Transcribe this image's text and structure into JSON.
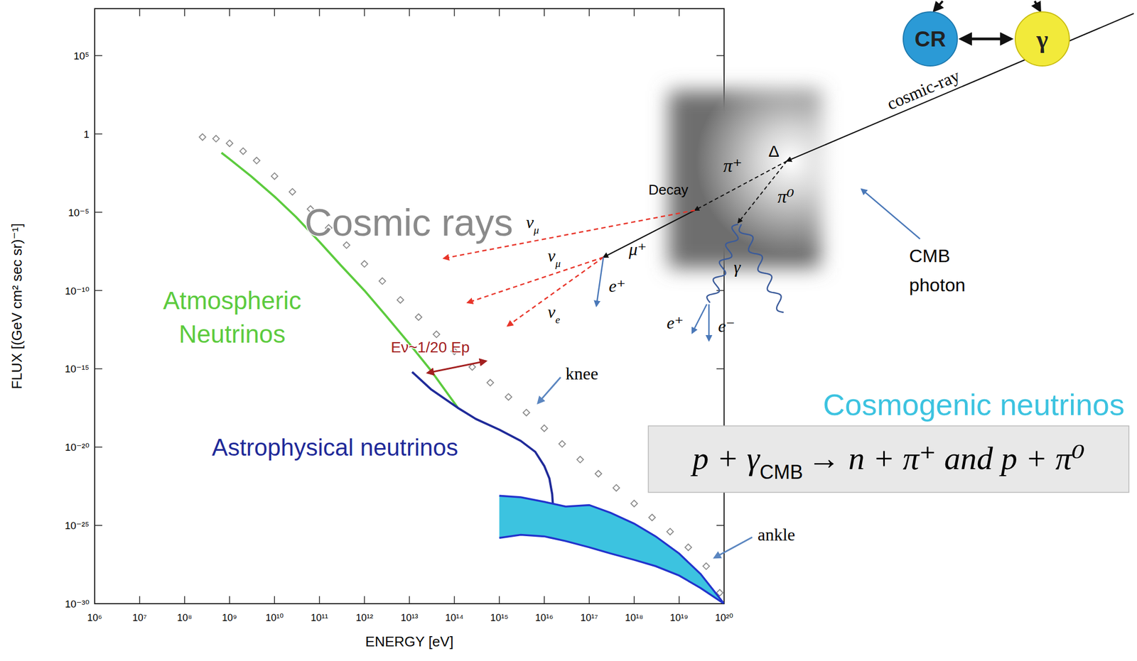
{
  "chart_data": {
    "type": "line",
    "x_label": "ENERGY [eV]",
    "y_label": "FLUX [(GeV cm² sec sr)⁻¹]",
    "log": true,
    "grid": false,
    "xlim": [
      1000000.0,
      1e+20
    ],
    "ylim": [
      1e-30,
      100000000.0
    ],
    "xticks": [
      {
        "value": 1000000.0,
        "label": "10⁶"
      },
      {
        "value": 10000000.0,
        "label": "10⁷"
      },
      {
        "value": 100000000.0,
        "label": "10⁸"
      },
      {
        "value": 1000000000.0,
        "label": "10⁹"
      },
      {
        "value": 10000000000.0,
        "label": "10¹⁰"
      },
      {
        "value": 100000000000.0,
        "label": "10¹¹"
      },
      {
        "value": 1000000000000.0,
        "label": "10¹²"
      },
      {
        "value": 10000000000000.0,
        "label": "10¹³"
      },
      {
        "value": 100000000000000.0,
        "label": "10¹⁴"
      },
      {
        "value": 1000000000000000.0,
        "label": "10¹⁵"
      },
      {
        "value": 1e+16,
        "label": "10¹⁶"
      },
      {
        "value": 1e+17,
        "label": "10¹⁷"
      },
      {
        "value": 1e+18,
        "label": "10¹⁸"
      },
      {
        "value": 1e+19,
        "label": "10¹⁹"
      },
      {
        "value": 1e+20,
        "label": "10²⁰"
      }
    ],
    "yticks": [
      {
        "value": 1e-30,
        "label": "10⁻³⁰"
      },
      {
        "value": 1e-25,
        "label": "10⁻²⁵"
      },
      {
        "value": 1e-20,
        "label": "10⁻²⁰"
      },
      {
        "value": 1e-15,
        "label": "10⁻¹⁵"
      },
      {
        "value": 1e-10,
        "label": "10⁻¹⁰"
      },
      {
        "value": 1e-05,
        "label": "10⁻⁵"
      },
      1,
      {
        "value": 100000.0,
        "label": "10⁵"
      }
    ],
    "series": [
      {
        "name": "Cosmic rays",
        "type": "scatter",
        "marker": "diamond",
        "color": "#8a8a8a",
        "x": [
          250000000.0,
          500000000.0,
          1000000000.0,
          2000000000.0,
          4000000000.0,
          10000000000.0,
          25000000000.0,
          63000000000.0,
          160000000000.0,
          400000000000.0,
          1000000000000.0,
          2500000000000.0,
          6300000000000.0,
          16000000000000.0,
          40000000000000.0,
          100000000000000.0,
          250000000000000.0,
          630000000000000.0,
          1600000000000000.0,
          4000000000000000.0,
          1e+16,
          2.5e+16,
          6.3e+16,
          1.6e+17,
          4e+17,
          1e+18,
          2.5e+18,
          6.3e+18,
          1.6e+19,
          4e+19,
          8e+19
        ],
        "values": [
          0.63,
          0.5,
          0.25,
          0.079,
          0.02,
          0.002,
          0.0002,
          1.6e-05,
          1e-06,
          7.9e-08,
          5e-09,
          4e-10,
          2.5e-11,
          2e-12,
          1.6e-13,
          1.3e-14,
          1.3e-15,
          1.3e-16,
          1.6e-17,
          1.6e-18,
          1.6e-19,
          1.6e-20,
          1.6e-21,
          2e-22,
          2.5e-23,
          2.5e-24,
          3.2e-25,
          4e-26,
          4e-27,
          2.5e-28,
          5e-30
        ]
      },
      {
        "name": "Atmospheric Neutrinos",
        "type": "line",
        "color": "#5ccb3e",
        "x": [
          660000000.0,
          1000000000.0,
          3000000000.0,
          10000000000.0,
          30000000000.0,
          100000000000.0,
          300000000000.0,
          1000000000000.0,
          3000000000000.0,
          10000000000000.0,
          30000000000000.0,
          120000000000000.0
        ],
        "values": [
          0.063,
          0.025,
          0.002,
          0.0001,
          5e-06,
          1.3e-07,
          4e-09,
          1e-10,
          2.5e-12,
          4e-14,
          7.9e-16,
          3.2e-18
        ]
      },
      {
        "name": "Astrophysical neutrinos",
        "type": "line",
        "color": "#1f2a99",
        "x": [
          11500000000000.0,
          30000000000000.0,
          120000000000000.0,
          300000000000000.0,
          1000000000000000.0,
          3000000000000000.0,
          6300000000000000.0,
          1e+16,
          1.3e+16,
          1.5e+16,
          1.6e+16,
          1.6e+16
        ],
        "values": [
          6.3e-16,
          5e-17,
          3.2e-18,
          6.3e-19,
          1.3e-19,
          2.5e-20,
          5e-21,
          6.3e-22,
          1e-22,
          1e-23,
          6.3e-25,
          6.3e-26
        ]
      },
      {
        "name": "Cosmogenic neutrinos",
        "type": "area",
        "color": "#3cc3e0",
        "x": [
          1000000000000000.0,
          3000000000000000.0,
          1e+16,
          3e+16,
          1e+17,
          3e+17,
          1e+18,
          3e+18,
          1e+19,
          3e+19,
          1e+20
        ],
        "values": [
          7.9e-24,
          6.3e-24,
          3.2e-24,
          1.6e-24,
          2e-24,
          6.3e-25,
          1.3e-25,
          2e-26,
          1.6e-27,
          7.9e-29,
          1e-30
        ],
        "lower": [
          1.6e-26,
          2.5e-26,
          2e-26,
          1e-26,
          4e-27,
          1.6e-27,
          6.3e-28,
          2.5e-28,
          6.3e-29,
          1e-29,
          1e-30
        ]
      }
    ],
    "annotations": [
      {
        "text": "Eν~1/20 Ep",
        "color": "#a32020"
      },
      {
        "text": "knee",
        "color": "#000000"
      },
      {
        "text": "ankle",
        "color": "#000000"
      }
    ]
  },
  "diagram": {
    "cosmic_ray": "cosmic-ray",
    "delta": "Δ",
    "pi_plus": "π⁺",
    "pi_zero": "π⁰",
    "decay": "Decay",
    "nu_mu_a": {
      "base": "ν",
      "sub": "μ"
    },
    "mu_plus": "μ⁺",
    "nu_mu_b": {
      "base": "ν",
      "sub": "μ"
    },
    "e_plus_a": "e⁺",
    "nu_e": {
      "base": "ν",
      "sub": "e"
    },
    "gamma": "γ",
    "e_plus_b": "e⁺",
    "e_minus": "e⁻",
    "cmb_photon": "CMB photon",
    "cr_node": "CR",
    "gamma_node": "γ",
    "formula": {
      "parts": [
        "p + γ",
        "CMB",
        "→ n + π⁺  and  p + π⁰"
      ]
    }
  }
}
